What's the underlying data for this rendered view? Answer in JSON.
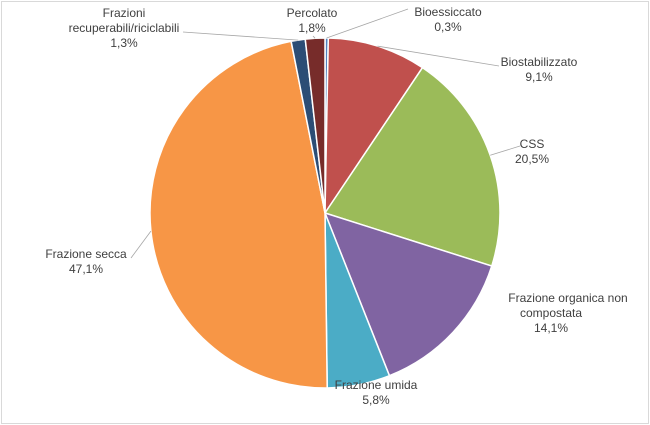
{
  "chart_data": {
    "type": "pie",
    "slices": [
      {
        "label": "Bioessiccato",
        "value_label": "0,3%",
        "value": 0.3,
        "color": "#4F81BD"
      },
      {
        "label": "Biostabilizzato",
        "value_label": "9,1%",
        "value": 9.1,
        "color": "#C0504D"
      },
      {
        "label": "CSS",
        "value_label": "20,5%",
        "value": 20.5,
        "color": "#9BBB59"
      },
      {
        "label": "Frazione organica non compostata",
        "value_label": "14,1%",
        "value": 14.1,
        "color": "#8064A2"
      },
      {
        "label": "Frazione umida",
        "value_label": "5,8%",
        "value": 5.8,
        "color": "#4BACC6"
      },
      {
        "label": "Frazione secca",
        "value_label": "47,1%",
        "value": 47.1,
        "color": "#F79646"
      },
      {
        "label": "Frazioni recuperabili/riciclabili",
        "value_label": "1,3%",
        "value": 1.3,
        "color": "#2C4D75"
      },
      {
        "label": "Percolato",
        "value_label": "1,8%",
        "value": 1.8,
        "color": "#772C2A"
      }
    ],
    "start_angle_deg": 0,
    "direction": "clockwise",
    "legend": "none",
    "data_labels": "outside with leader lines"
  }
}
